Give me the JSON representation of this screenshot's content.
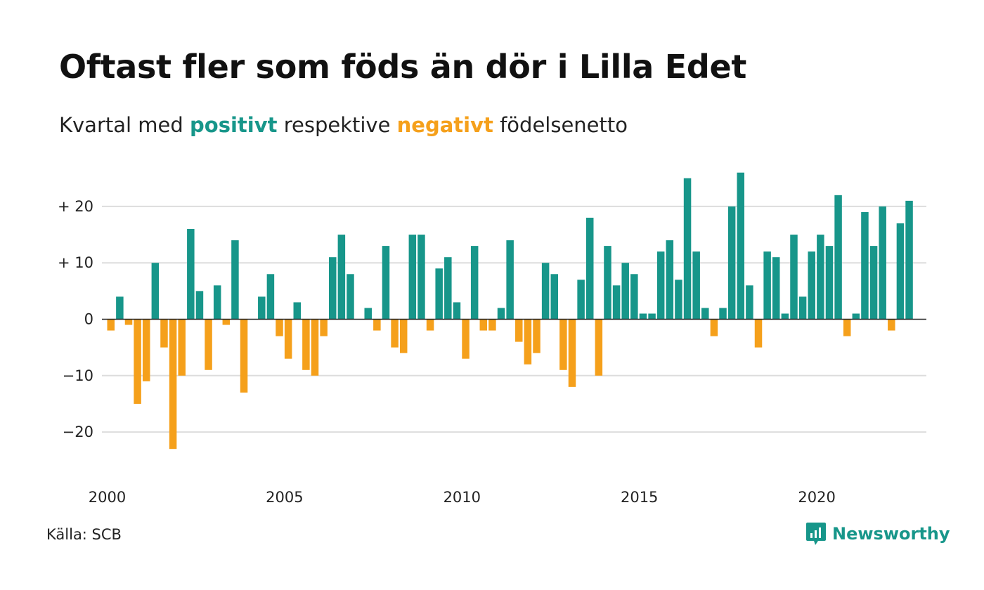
{
  "title": "Oftast fler som föds än dör i Lilla Edet",
  "subtitle": {
    "prefix": "Kvartal med",
    "positive_word": "positivt",
    "middle": "respektive",
    "negative_word": "negativt",
    "suffix": "födelsenetto"
  },
  "source": "Källa: SCB",
  "brand": {
    "name": "Newsworthy",
    "icon": "newsworthy-logo-icon"
  },
  "colors": {
    "positive": "#17968a",
    "negative": "#f5a01b",
    "grid": "#dddddd",
    "zero_line": "#222222"
  },
  "chart_data": {
    "type": "bar",
    "title": "Oftast fler som föds än dör i Lilla Edet",
    "x_unit": "quarter",
    "x_start": "2000",
    "values": [
      -2,
      4,
      -1,
      -15,
      -11,
      10,
      -5,
      -23,
      -10,
      16,
      5,
      -9,
      6,
      -1,
      14,
      -13,
      0,
      4,
      8,
      -3,
      -7,
      3,
      -9,
      -10,
      -3,
      11,
      15,
      8,
      0,
      2,
      -2,
      13,
      -5,
      -6,
      15,
      15,
      -2,
      9,
      11,
      3,
      -7,
      13,
      -2,
      -2,
      2,
      14,
      -4,
      -8,
      -6,
      10,
      8,
      -9,
      -12,
      7,
      18,
      -10,
      13,
      6,
      10,
      8,
      1,
      1,
      12,
      14,
      7,
      25,
      12,
      2,
      -3,
      2,
      20,
      26,
      6,
      -5,
      12,
      11,
      1,
      15,
      4,
      12,
      15,
      13,
      22,
      -3,
      1,
      19,
      13,
      20,
      -2,
      17,
      21
    ],
    "ylim": [
      -25,
      25
    ],
    "yticks": [
      20,
      10,
      0,
      -10,
      -20
    ],
    "ytick_labels": [
      "+ 20",
      "+ 10",
      "0",
      "−10",
      "−20"
    ],
    "xticks": [
      "2000",
      "2005",
      "2010",
      "2015",
      "2020"
    ],
    "grid": true
  }
}
